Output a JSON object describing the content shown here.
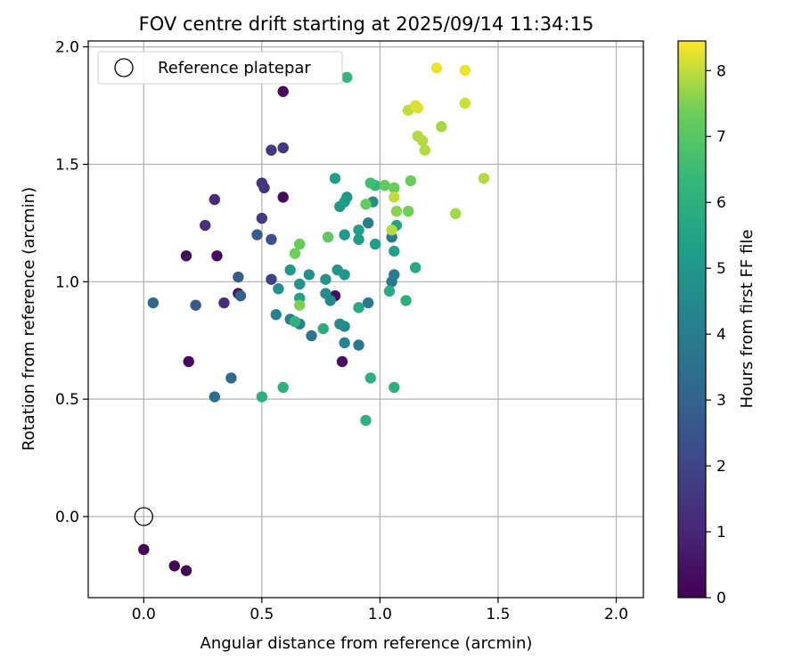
{
  "chart_data": {
    "type": "scatter",
    "title": "FOV centre drift starting at 2025/09/14 11:34:15",
    "xlabel": "Angular distance from reference (arcmin)",
    "ylabel": "Rotation from reference (arcmin)",
    "xlim": [
      -0.235,
      2.115
    ],
    "ylim": [
      -0.345,
      2.025
    ],
    "xticks": [
      0.0,
      0.5,
      1.0,
      1.5,
      2.0
    ],
    "yticks": [
      0.0,
      0.5,
      1.0,
      1.5,
      2.0
    ],
    "xtick_labels": [
      "0.0",
      "0.5",
      "1.0",
      "1.5",
      "2.0"
    ],
    "ytick_labels": [
      "0.0",
      "0.5",
      "1.0",
      "1.5",
      "2.0"
    ],
    "grid": true,
    "legend": {
      "position": "top-left",
      "entries": [
        {
          "label": "Reference platepar",
          "marker": "open-circle"
        }
      ]
    },
    "reference_point": {
      "x": 0.0,
      "y": 0.0,
      "marker": "open-circle",
      "color": "#000000"
    },
    "colorbar": {
      "label": "Hours from first FF file",
      "colormap": "viridis",
      "range": [
        0,
        8.45
      ],
      "ticks": [
        0,
        1,
        2,
        3,
        4,
        5,
        6,
        7,
        8
      ],
      "tick_labels": [
        "0",
        "1",
        "2",
        "3",
        "4",
        "5",
        "6",
        "7",
        "8"
      ]
    },
    "series": [
      {
        "points": [
          {
            "x": 0.0,
            "y": -0.14,
            "c": 0.1
          },
          {
            "x": 0.13,
            "y": -0.21,
            "c": 0.1
          },
          {
            "x": 0.18,
            "y": -0.23,
            "c": 0.1
          },
          {
            "x": 0.19,
            "y": 0.66,
            "c": 0.2
          },
          {
            "x": 0.18,
            "y": 1.11,
            "c": 0.3
          },
          {
            "x": 0.31,
            "y": 1.11,
            "c": 0.3
          },
          {
            "x": 0.59,
            "y": 1.81,
            "c": 0.2
          },
          {
            "x": 0.59,
            "y": 1.36,
            "c": 0.3
          },
          {
            "x": 0.4,
            "y": 0.95,
            "c": 0.5
          },
          {
            "x": 0.81,
            "y": 0.94,
            "c": 0.4
          },
          {
            "x": 0.84,
            "y": 0.66,
            "c": 0.5
          },
          {
            "x": 0.3,
            "y": 1.35,
            "c": 1.2
          },
          {
            "x": 0.26,
            "y": 1.24,
            "c": 1.3
          },
          {
            "x": 0.34,
            "y": 0.91,
            "c": 1.2
          },
          {
            "x": 0.5,
            "y": 1.42,
            "c": 1.4
          },
          {
            "x": 0.51,
            "y": 1.4,
            "c": 1.5
          },
          {
            "x": 0.5,
            "y": 1.27,
            "c": 1.6
          },
          {
            "x": 0.54,
            "y": 1.56,
            "c": 1.6
          },
          {
            "x": 0.59,
            "y": 1.57,
            "c": 1.5
          },
          {
            "x": 0.54,
            "y": 1.01,
            "c": 1.9
          },
          {
            "x": 0.22,
            "y": 0.9,
            "c": 2.6
          },
          {
            "x": 0.54,
            "y": 1.18,
            "c": 2.3
          },
          {
            "x": 0.48,
            "y": 1.2,
            "c": 2.8
          },
          {
            "x": 0.4,
            "y": 1.02,
            "c": 2.8
          },
          {
            "x": 0.41,
            "y": 0.94,
            "c": 3.0
          },
          {
            "x": 0.04,
            "y": 0.91,
            "c": 3.1
          },
          {
            "x": 0.37,
            "y": 0.59,
            "c": 3.2
          },
          {
            "x": 0.3,
            "y": 0.51,
            "c": 3.4
          },
          {
            "x": 0.71,
            "y": 0.77,
            "c": 3.6
          },
          {
            "x": 0.91,
            "y": 0.73,
            "c": 3.7
          },
          {
            "x": 0.95,
            "y": 0.91,
            "c": 3.9
          },
          {
            "x": 1.05,
            "y": 1.0,
            "c": 3.9
          },
          {
            "x": 1.06,
            "y": 1.03,
            "c": 4.0
          },
          {
            "x": 1.05,
            "y": 1.19,
            "c": 3.8
          },
          {
            "x": 0.95,
            "y": 1.25,
            "c": 4.1
          },
          {
            "x": 0.56,
            "y": 0.86,
            "c": 4.2
          },
          {
            "x": 0.62,
            "y": 0.84,
            "c": 4.1
          },
          {
            "x": 0.66,
            "y": 0.82,
            "c": 4.3
          },
          {
            "x": 0.85,
            "y": 0.74,
            "c": 4.4
          },
          {
            "x": 0.85,
            "y": 0.81,
            "c": 4.5
          },
          {
            "x": 0.83,
            "y": 0.82,
            "c": 4.6
          },
          {
            "x": 0.79,
            "y": 0.92,
            "c": 4.5
          },
          {
            "x": 0.77,
            "y": 0.95,
            "c": 4.7
          },
          {
            "x": 0.57,
            "y": 0.97,
            "c": 4.8
          },
          {
            "x": 0.66,
            "y": 0.99,
            "c": 4.9
          },
          {
            "x": 0.7,
            "y": 1.03,
            "c": 4.8
          },
          {
            "x": 0.62,
            "y": 1.05,
            "c": 5.0
          },
          {
            "x": 0.77,
            "y": 1.01,
            "c": 4.9
          },
          {
            "x": 0.82,
            "y": 1.05,
            "c": 5.0
          },
          {
            "x": 0.85,
            "y": 1.03,
            "c": 5.1
          },
          {
            "x": 0.85,
            "y": 1.2,
            "c": 5.1
          },
          {
            "x": 0.91,
            "y": 1.18,
            "c": 5.2
          },
          {
            "x": 0.98,
            "y": 1.16,
            "c": 5.3
          },
          {
            "x": 0.91,
            "y": 1.22,
            "c": 5.3
          },
          {
            "x": 0.97,
            "y": 1.34,
            "c": 4.7
          },
          {
            "x": 0.83,
            "y": 1.32,
            "c": 5.0
          },
          {
            "x": 0.86,
            "y": 1.36,
            "c": 5.1
          },
          {
            "x": 0.85,
            "y": 1.34,
            "c": 5.2
          },
          {
            "x": 0.81,
            "y": 1.44,
            "c": 5.3
          },
          {
            "x": 1.06,
            "y": 1.13,
            "c": 5.4
          },
          {
            "x": 1.07,
            "y": 1.24,
            "c": 5.5
          },
          {
            "x": 0.66,
            "y": 0.93,
            "c": 5.4
          },
          {
            "x": 0.91,
            "y": 0.89,
            "c": 5.7
          },
          {
            "x": 1.04,
            "y": 0.96,
            "c": 5.8
          },
          {
            "x": 1.11,
            "y": 0.92,
            "c": 6.0
          },
          {
            "x": 1.15,
            "y": 1.06,
            "c": 5.7
          },
          {
            "x": 0.76,
            "y": 0.8,
            "c": 5.9
          },
          {
            "x": 0.64,
            "y": 0.83,
            "c": 6.1
          },
          {
            "x": 0.59,
            "y": 0.55,
            "c": 6.0
          },
          {
            "x": 0.5,
            "y": 0.51,
            "c": 6.0
          },
          {
            "x": 0.94,
            "y": 0.41,
            "c": 6.0
          },
          {
            "x": 0.96,
            "y": 0.59,
            "c": 6.0
          },
          {
            "x": 1.06,
            "y": 0.55,
            "c": 6.0
          },
          {
            "x": 0.86,
            "y": 1.87,
            "c": 6.2
          },
          {
            "x": 0.98,
            "y": 1.41,
            "c": 6.3
          },
          {
            "x": 0.96,
            "y": 1.42,
            "c": 6.5
          },
          {
            "x": 0.78,
            "y": 1.19,
            "c": 7.1
          },
          {
            "x": 0.66,
            "y": 1.16,
            "c": 7.2
          },
          {
            "x": 0.64,
            "y": 1.12,
            "c": 7.4
          },
          {
            "x": 0.66,
            "y": 0.9,
            "c": 7.5
          },
          {
            "x": 0.94,
            "y": 1.33,
            "c": 7.2
          },
          {
            "x": 1.02,
            "y": 1.41,
            "c": 7.1
          },
          {
            "x": 1.06,
            "y": 1.4,
            "c": 7.3
          },
          {
            "x": 1.13,
            "y": 1.43,
            "c": 7.3
          },
          {
            "x": 1.12,
            "y": 1.3,
            "c": 7.4
          },
          {
            "x": 1.07,
            "y": 1.3,
            "c": 7.6
          },
          {
            "x": 1.05,
            "y": 1.22,
            "c": 7.9
          },
          {
            "x": 1.06,
            "y": 1.36,
            "c": 8.0
          },
          {
            "x": 1.12,
            "y": 1.73,
            "c": 8.0
          },
          {
            "x": 1.15,
            "y": 1.75,
            "c": 8.2
          },
          {
            "x": 1.16,
            "y": 1.74,
            "c": 8.2
          },
          {
            "x": 1.16,
            "y": 1.62,
            "c": 7.9
          },
          {
            "x": 1.18,
            "y": 1.6,
            "c": 7.9
          },
          {
            "x": 1.19,
            "y": 1.56,
            "c": 7.9
          },
          {
            "x": 1.26,
            "y": 1.66,
            "c": 7.8
          },
          {
            "x": 1.32,
            "y": 1.29,
            "c": 7.8
          },
          {
            "x": 1.44,
            "y": 1.44,
            "c": 7.9
          },
          {
            "x": 1.36,
            "y": 1.76,
            "c": 8.1
          },
          {
            "x": 1.24,
            "y": 1.91,
            "c": 8.3
          },
          {
            "x": 1.36,
            "y": 1.9,
            "c": 8.3
          }
        ]
      }
    ]
  }
}
